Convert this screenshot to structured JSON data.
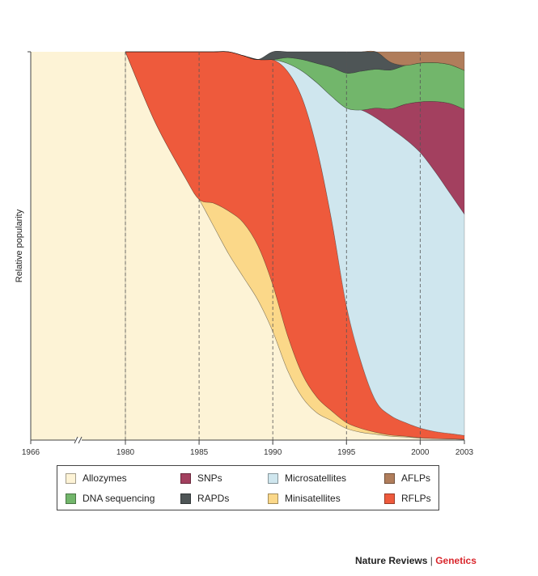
{
  "chart_data": {
    "type": "area",
    "stacking": "relative (100%)",
    "title": "",
    "xlabel": "",
    "ylabel": "Relative popularity",
    "x_ticks": [
      "1966",
      "1980",
      "1985",
      "1990",
      "1995",
      "2000",
      "2003"
    ],
    "x_axis_break_after": "1966",
    "gridlines": "vertical dashed at 1980, 1985, 1990, 1995, 2000",
    "legend_placement": "bottom",
    "x": [
      1980,
      1982,
      1984,
      1985,
      1986,
      1987,
      1988,
      1989,
      1990,
      1991,
      1992,
      1993,
      1994,
      1995,
      1996,
      1997,
      1998,
      1999,
      2000,
      2001,
      2002,
      2003
    ],
    "series": [
      {
        "name": "Allozymes",
        "color": "#fdf3d6",
        "values": [
          100,
          82,
          68,
          62,
          55,
          48,
          42,
          36,
          28,
          18,
          11,
          7,
          5,
          3,
          2,
          1.5,
          1,
          0.8,
          0.5,
          0.4,
          0.3,
          0.2
        ]
      },
      {
        "name": "Minisatellites",
        "color": "#fbd889",
        "values": [
          0,
          0,
          0,
          0,
          6,
          11,
          14,
          14,
          12,
          9,
          6,
          4,
          2.5,
          1.5,
          1,
          0.5,
          0.3,
          0.2,
          0.1,
          0,
          0,
          0
        ]
      },
      {
        "name": "RFLPs",
        "color": "#ee5a3c",
        "values": [
          0,
          18,
          32,
          38,
          39,
          41,
          43,
          48,
          58,
          68,
          71,
          64,
          49,
          30,
          17,
          8,
          5,
          3.5,
          2.5,
          1.8,
          1.4,
          1
        ]
      },
      {
        "name": "Microsatellites",
        "color": "#cfe6ee",
        "values": [
          0,
          0,
          0,
          0,
          0,
          0,
          0,
          0,
          0,
          2,
          7,
          17,
          32,
          51,
          65,
          73,
          74,
          73,
          71,
          67,
          62,
          57
        ]
      },
      {
        "name": "SNPs",
        "color": "#a3405f",
        "values": [
          0,
          0,
          0,
          0,
          0,
          0,
          0,
          0,
          0,
          0,
          0,
          0,
          0,
          0,
          0,
          2.5,
          5,
          9,
          13,
          18,
          23,
          27
        ]
      },
      {
        "name": "DNA sequencing",
        "color": "#72b66b",
        "values": [
          0,
          0,
          0,
          0,
          0,
          0,
          0,
          0,
          0,
          1.5,
          3,
          5,
          7.5,
          9,
          10,
          10,
          10,
          10,
          10,
          10,
          10,
          10
        ]
      },
      {
        "name": "RAPDs",
        "color": "#4e5556",
        "values": [
          0,
          0,
          0,
          0,
          0,
          0,
          0,
          0,
          2,
          3.5,
          2,
          3,
          4,
          5.5,
          6,
          5,
          2,
          0,
          0,
          0,
          0,
          0
        ]
      },
      {
        "name": "AFLPs",
        "color": "#b07d5b",
        "values": [
          0,
          0,
          0,
          0,
          0,
          0,
          0,
          0,
          0,
          0,
          0,
          0,
          0,
          0,
          0,
          0,
          3,
          4.5,
          5,
          5,
          5,
          5
        ]
      }
    ]
  },
  "legend": {
    "items": [
      {
        "label": "Allozymes",
        "color": "#fdf3d6"
      },
      {
        "label": "SNPs",
        "color": "#a3405f"
      },
      {
        "label": "Microsatellites",
        "color": "#cfe6ee"
      },
      {
        "label": "AFLPs",
        "color": "#b07d5b"
      },
      {
        "label": "DNA sequencing",
        "color": "#72b66b"
      },
      {
        "label": "RAPDs",
        "color": "#4e5556"
      },
      {
        "label": "Minisatellites",
        "color": "#fbd889"
      },
      {
        "label": "RFLPs",
        "color": "#ee5a3c"
      }
    ]
  },
  "credit": {
    "publication": "Nature Reviews",
    "separator": "|",
    "section": "Genetics",
    "section_color": "#d9262c"
  }
}
